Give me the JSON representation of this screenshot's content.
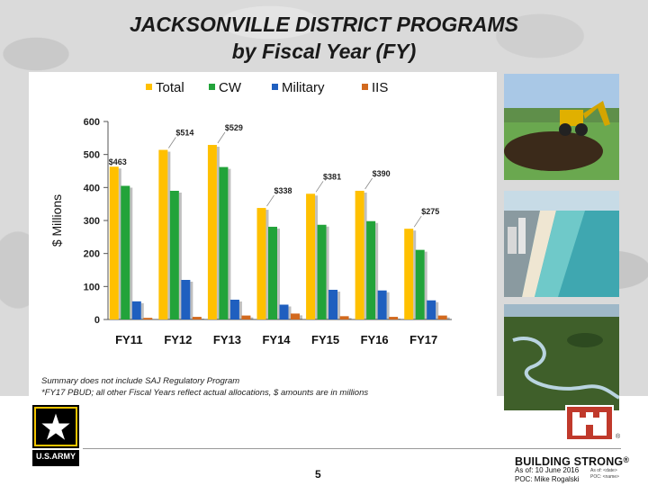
{
  "header": {
    "title_line1": "JACKSONVILLE DISTRICT PROGRAMS",
    "title_line2": "by Fiscal Year (FY)"
  },
  "chart_data": {
    "type": "bar",
    "ylabel": "$ Millions",
    "ylim": [
      0,
      600
    ],
    "yticks": [
      0,
      100,
      200,
      300,
      400,
      500,
      600
    ],
    "categories": [
      "FY11",
      "FY12",
      "FY13",
      "FY14",
      "FY15",
      "FY16",
      "FY17"
    ],
    "legend_position": "top",
    "grid": false,
    "series": [
      {
        "name": "Total",
        "color": "#ffc000",
        "values": [
          463,
          514,
          529,
          338,
          381,
          390,
          275
        ]
      },
      {
        "name": "CW",
        "color": "#22a33a",
        "values": [
          405,
          390,
          462,
          281,
          287,
          298,
          211
        ]
      },
      {
        "name": "Military",
        "color": "#1f5fbf",
        "values": [
          55,
          120,
          60,
          45,
          90,
          88,
          58
        ]
      },
      {
        "name": "IIS",
        "color": "#d2691e",
        "values": [
          5,
          8,
          12,
          18,
          10,
          8,
          12
        ]
      }
    ],
    "data_labels": [
      "$463",
      "$514",
      "$529",
      "$338",
      "$381",
      "$390",
      "$275"
    ]
  },
  "notes": {
    "line1": "Summary does not include SAJ Regulatory Program",
    "line2": "*FY17 PBUD; all other Fiscal Years reflect actual allocations, $ amounts are in millions"
  },
  "footer": {
    "page_number": "5",
    "building_strong": "BUILDING STRONG",
    "registered": "®",
    "as_of": "As of: 10 June 2016",
    "poc": "POC: Mike Rogalski",
    "small_as_of": "As of: <date>",
    "small_poc": "POC: <name>",
    "army_logo_text": "U.S.ARMY"
  },
  "colors": {
    "total": "#ffc000",
    "cw": "#22a33a",
    "military": "#1f5fbf",
    "iis": "#d2691e",
    "castle_red": "#c0392b"
  }
}
